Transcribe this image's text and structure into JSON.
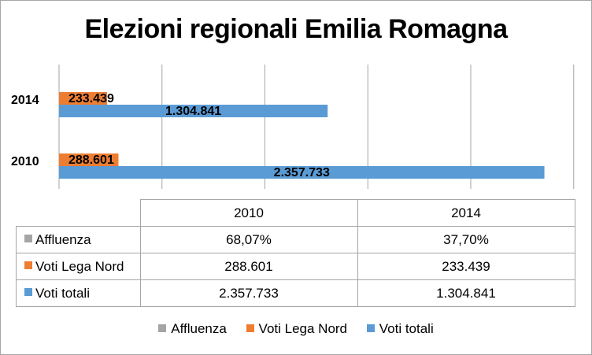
{
  "chart_data": {
    "type": "bar",
    "orientation": "horizontal",
    "title": "Elezioni regionali Emilia Romagna",
    "categories": [
      "2014",
      "2010"
    ],
    "series": [
      {
        "name": "Affluenza",
        "values": [
          37.7,
          68.07
        ],
        "labels": [
          "37,70%",
          "68,07%"
        ],
        "color": "#a5a5a5",
        "plotted": false
      },
      {
        "name": "Voti Lega Nord",
        "values": [
          233439,
          288601
        ],
        "labels": [
          "233.439",
          "288.601"
        ],
        "color": "#ed7d31"
      },
      {
        "name": "Voti totali",
        "values": [
          1304841,
          2357733
        ],
        "labels": [
          "1.304.841",
          "2.357.733"
        ],
        "color": "#5b9bd5"
      }
    ],
    "xlim": [
      0,
      2500000
    ],
    "grid": true,
    "legend_position": "bottom",
    "table": {
      "columns": [
        "2010",
        "2014"
      ],
      "rows": [
        {
          "name": "Affluenza",
          "color": "#a5a5a5",
          "values": [
            "68,07%",
            "37,70%"
          ]
        },
        {
          "name": "Voti Lega Nord",
          "color": "#ed7d31",
          "values": [
            "288.601",
            "233.439"
          ]
        },
        {
          "name": "Voti totali",
          "color": "#5b9bd5",
          "values": [
            "2.357.733",
            "1.304.841"
          ]
        }
      ]
    }
  }
}
